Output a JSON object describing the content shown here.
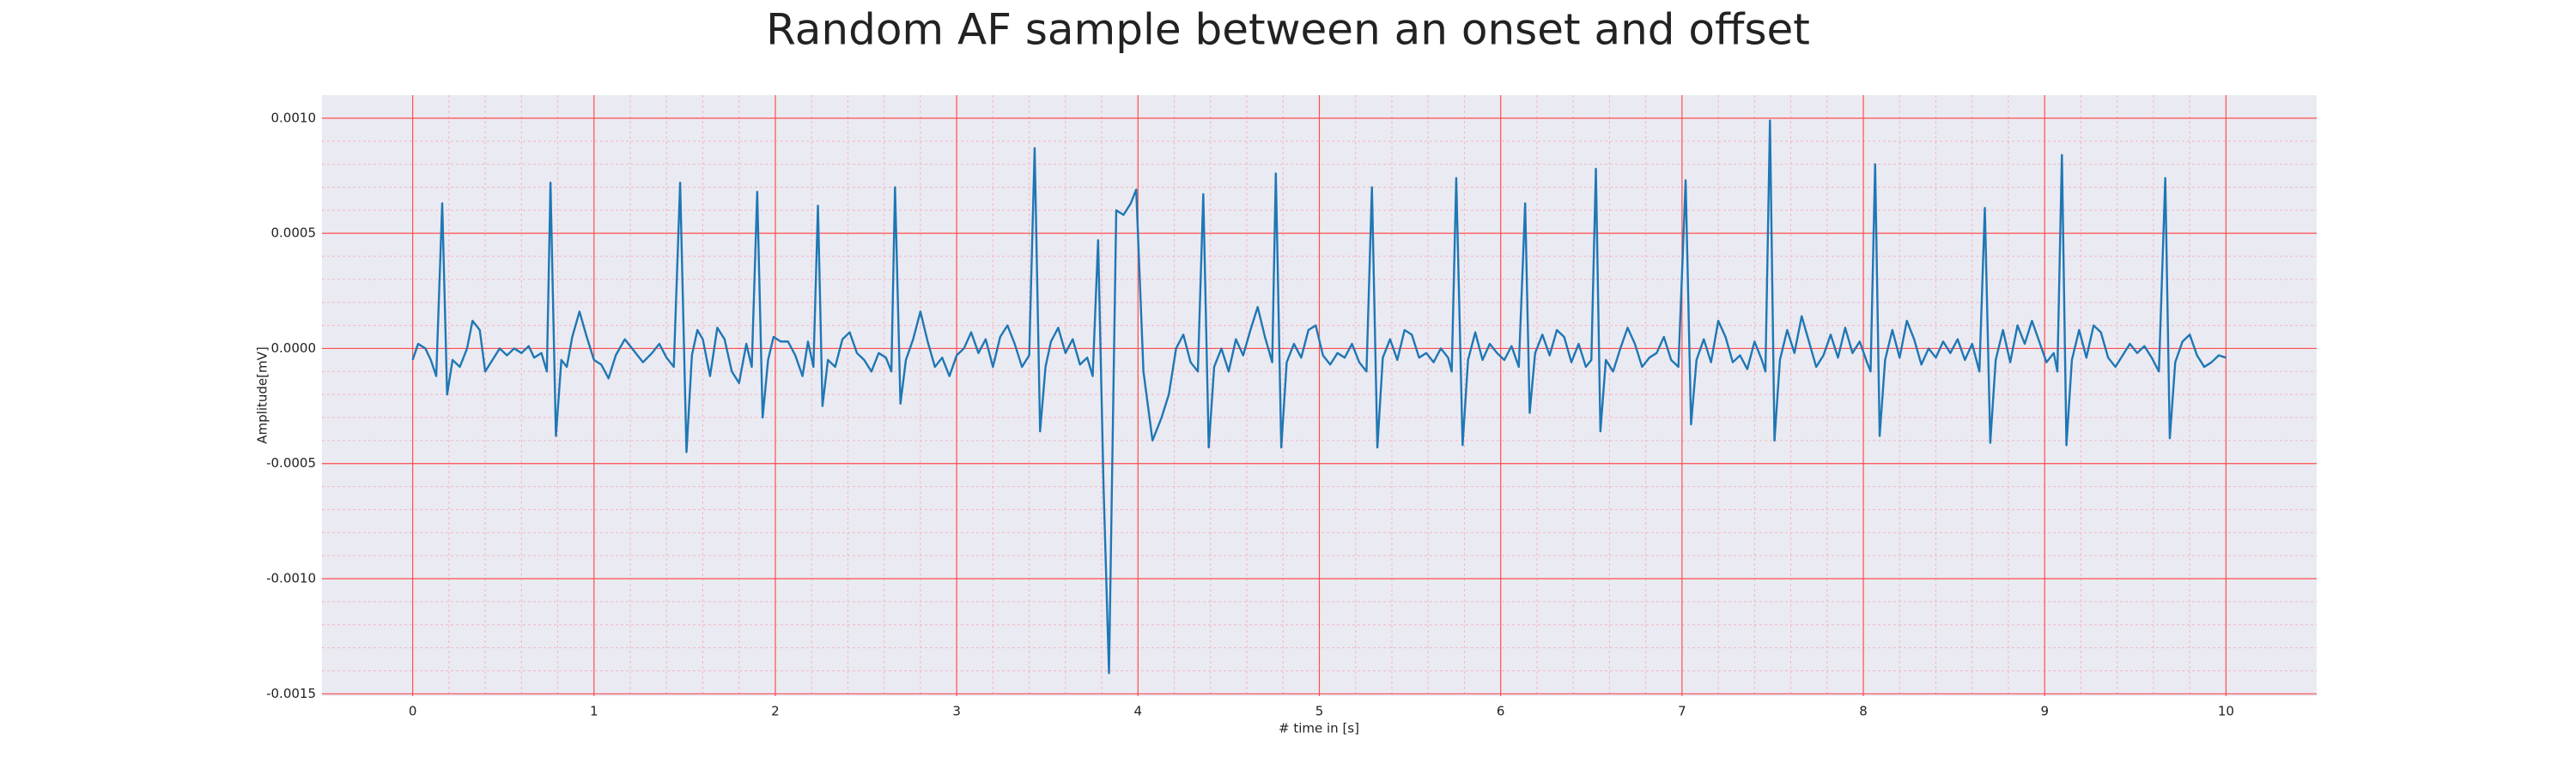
{
  "chart_data": {
    "type": "line",
    "title": "Random AF sample between an onset and offset",
    "xlabel": "# time in [s]",
    "ylabel": "Amplitude[mV]",
    "color": "#1f77b4",
    "grid": true,
    "minor_grid": true,
    "xlim": [
      -0.5,
      10.5
    ],
    "xticks": [
      0,
      1,
      2,
      3,
      4,
      5,
      6,
      7,
      8,
      9,
      10
    ],
    "ylim": [
      -0.00151,
      0.0011
    ],
    "yticks": [
      {
        "value": -0.0015,
        "label": "-0.0015"
      },
      {
        "value": -0.001,
        "label": "-0.0010"
      },
      {
        "value": -0.0005,
        "label": "-0.0005"
      },
      {
        "value": 0,
        "label": "0.0000"
      },
      {
        "value": 0.0005,
        "label": "0.0005"
      },
      {
        "value": 0.001,
        "label": "0.0010"
      }
    ],
    "x": [
      0,
      0.03,
      0.07,
      0.1,
      0.13,
      0.163,
      0.19,
      0.22,
      0.26,
      0.3,
      0.33,
      0.37,
      0.4,
      0.44,
      0.48,
      0.52,
      0.56,
      0.6,
      0.64,
      0.67,
      0.71,
      0.74,
      0.76,
      0.79,
      0.82,
      0.85,
      0.88,
      0.92,
      0.96,
      1.0,
      1.04,
      1.08,
      1.12,
      1.17,
      1.22,
      1.27,
      1.32,
      1.36,
      1.4,
      1.44,
      1.475,
      1.51,
      1.54,
      1.57,
      1.6,
      1.64,
      1.68,
      1.72,
      1.76,
      1.8,
      1.84,
      1.87,
      1.9,
      1.93,
      1.96,
      1.99,
      2.03,
      2.07,
      2.11,
      2.15,
      2.18,
      2.21,
      2.235,
      2.26,
      2.29,
      2.33,
      2.37,
      2.41,
      2.45,
      2.49,
      2.53,
      2.57,
      2.61,
      2.64,
      2.66,
      2.69,
      2.72,
      2.76,
      2.8,
      2.84,
      2.88,
      2.92,
      2.96,
      3.0,
      3.04,
      3.08,
      3.12,
      3.16,
      3.2,
      3.24,
      3.28,
      3.32,
      3.36,
      3.4,
      3.43,
      3.46,
      3.49,
      3.52,
      3.56,
      3.6,
      3.64,
      3.68,
      3.72,
      3.75,
      3.78,
      3.81,
      3.84,
      3.88,
      3.92,
      3.96,
      3.99,
      4.03,
      4.08,
      4.13,
      4.17,
      4.21,
      4.25,
      4.29,
      4.33,
      4.36,
      4.39,
      4.42,
      4.46,
      4.5,
      4.54,
      4.58,
      4.62,
      4.66,
      4.7,
      4.74,
      4.76,
      4.79,
      4.82,
      4.86,
      4.9,
      4.94,
      4.98,
      5.02,
      5.06,
      5.1,
      5.14,
      5.18,
      5.22,
      5.26,
      5.29,
      5.32,
      5.35,
      5.39,
      5.43,
      5.47,
      5.51,
      5.55,
      5.59,
      5.63,
      5.67,
      5.71,
      5.73,
      5.755,
      5.79,
      5.82,
      5.86,
      5.9,
      5.94,
      5.98,
      6.02,
      6.06,
      6.1,
      6.135,
      6.16,
      6.19,
      6.23,
      6.27,
      6.31,
      6.35,
      6.39,
      6.43,
      6.47,
      6.5,
      6.525,
      6.55,
      6.58,
      6.62,
      6.66,
      6.7,
      6.74,
      6.78,
      6.82,
      6.86,
      6.9,
      6.94,
      6.98,
      7.02,
      7.05,
      7.08,
      7.12,
      7.16,
      7.2,
      7.24,
      7.28,
      7.32,
      7.36,
      7.4,
      7.44,
      7.46,
      7.485,
      7.51,
      7.54,
      7.58,
      7.62,
      7.66,
      7.7,
      7.74,
      7.78,
      7.82,
      7.86,
      7.9,
      7.94,
      7.98,
      8.02,
      8.04,
      8.065,
      8.09,
      8.12,
      8.16,
      8.2,
      8.24,
      8.28,
      8.32,
      8.36,
      8.4,
      8.44,
      8.48,
      8.52,
      8.56,
      8.6,
      8.64,
      8.67,
      8.7,
      8.73,
      8.77,
      8.81,
      8.85,
      8.89,
      8.93,
      8.97,
      9.01,
      9.05,
      9.07,
      9.095,
      9.12,
      9.15,
      9.19,
      9.23,
      9.27,
      9.31,
      9.35,
      9.39,
      9.43,
      9.47,
      9.51,
      9.55,
      9.59,
      9.63,
      9.665,
      9.69,
      9.72,
      9.76,
      9.8,
      9.84,
      9.88,
      9.92,
      9.96,
      10
    ],
    "values": [
      -5e-05,
      2e-05,
      0,
      -5e-05,
      -0.00012,
      0.00063,
      -0.0002,
      -5e-05,
      -8e-05,
      0,
      0.00012,
      8e-05,
      -0.0001,
      -5e-05,
      0,
      -3e-05,
      0,
      -2e-05,
      1e-05,
      -4e-05,
      -2e-05,
      -0.0001,
      0.00072,
      -0.00038,
      -5e-05,
      -8e-05,
      5e-05,
      0.00016,
      5e-05,
      -5e-05,
      -7e-05,
      -0.00013,
      -3e-05,
      4e-05,
      -1e-05,
      -6e-05,
      -2e-05,
      2e-05,
      -4e-05,
      -8e-05,
      0.00072,
      -0.00045,
      -3e-05,
      8e-05,
      4e-05,
      -0.00012,
      9e-05,
      4e-05,
      -0.0001,
      -0.00015,
      2e-05,
      -8e-05,
      0.00068,
      -0.0003,
      -5e-05,
      5e-05,
      3e-05,
      3e-05,
      -3e-05,
      -0.00012,
      3e-05,
      -8e-05,
      0.00062,
      -0.00025,
      -5e-05,
      -8e-05,
      4e-05,
      7e-05,
      -2e-05,
      -5e-05,
      -0.0001,
      -2e-05,
      -4e-05,
      -0.0001,
      0.0007,
      -0.00024,
      -5e-05,
      4e-05,
      0.00016,
      3e-05,
      -8e-05,
      -4e-05,
      -0.00012,
      -3e-05,
      0,
      7e-05,
      -2e-05,
      4e-05,
      -8e-05,
      5e-05,
      0.0001,
      2e-05,
      -8e-05,
      -3e-05,
      0.00087,
      -0.00036,
      -8e-05,
      3e-05,
      9e-05,
      -2e-05,
      4e-05,
      -7e-05,
      -4e-05,
      -0.00012,
      0.00047,
      -0.0006,
      -0.00141,
      0.0006,
      0.00058,
      0.00063,
      0.00069,
      -0.0001,
      -0.0004,
      -0.0003,
      -0.0002,
      0,
      6e-05,
      -6e-05,
      -0.0001,
      0.00067,
      -0.00043,
      -8e-05,
      0,
      -0.0001,
      4e-05,
      -3e-05,
      8e-05,
      0.00018,
      5e-05,
      -6e-05,
      0.00076,
      -0.00043,
      -6e-05,
      2e-05,
      -4e-05,
      8e-05,
      0.0001,
      -3e-05,
      -7e-05,
      -2e-05,
      -4e-05,
      2e-05,
      -6e-05,
      -0.0001,
      0.0007,
      -0.00043,
      -4e-05,
      4e-05,
      -5e-05,
      8e-05,
      6e-05,
      -4e-05,
      -2e-05,
      -6e-05,
      0,
      -4e-05,
      -0.0001,
      0.00074,
      -0.00042,
      -5e-05,
      7e-05,
      -5e-05,
      2e-05,
      -2e-05,
      -5e-05,
      1e-05,
      -8e-05,
      0.00063,
      -0.00028,
      -2e-05,
      6e-05,
      -3e-05,
      8e-05,
      5e-05,
      -6e-05,
      2e-05,
      -8e-05,
      -5e-05,
      0.00078,
      -0.00036,
      -5e-05,
      -0.0001,
      0,
      9e-05,
      2e-05,
      -8e-05,
      -4e-05,
      -2e-05,
      5e-05,
      -5e-05,
      -8e-05,
      0.00073,
      -0.00033,
      -5e-05,
      4e-05,
      -6e-05,
      0.00012,
      5e-05,
      -6e-05,
      -3e-05,
      -9e-05,
      3e-05,
      -5e-05,
      -0.0001,
      0.00099,
      -0.0004,
      -5e-05,
      8e-05,
      -2e-05,
      0.00014,
      3e-05,
      -8e-05,
      -3e-05,
      6e-05,
      -4e-05,
      9e-05,
      -2e-05,
      3e-05,
      -6e-05,
      -0.0001,
      0.0008,
      -0.00038,
      -5e-05,
      8e-05,
      -4e-05,
      0.00012,
      4e-05,
      -7e-05,
      0,
      -4e-05,
      3e-05,
      -2e-05,
      4e-05,
      -5e-05,
      2e-05,
      -0.0001,
      0.00061,
      -0.00041,
      -5e-05,
      8e-05,
      -6e-05,
      0.0001,
      2e-05,
      0.00012,
      3e-05,
      -6e-05,
      -2e-05,
      -0.0001,
      0.00084,
      -0.00042,
      -5e-05,
      8e-05,
      -4e-05,
      0.0001,
      7e-05,
      -4e-05,
      -8e-05,
      -3e-05,
      2e-05,
      -2e-05,
      1e-05,
      -4e-05,
      -0.0001,
      0.00074,
      -0.00039,
      -6e-05,
      3e-05,
      6e-05,
      -3e-05,
      -8e-05,
      -6e-05,
      -3e-05,
      -4e-05
    ]
  }
}
